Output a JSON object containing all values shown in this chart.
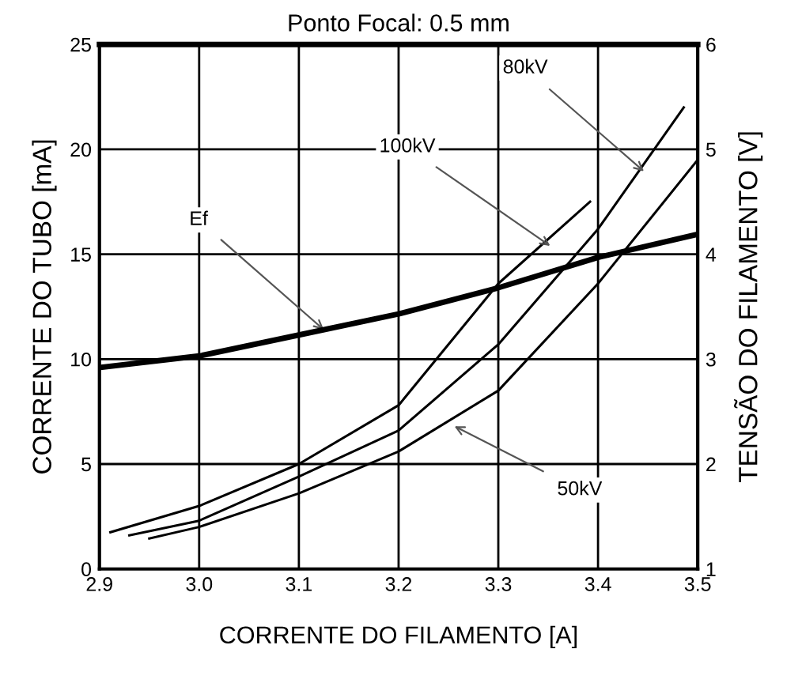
{
  "chart_data": {
    "type": "line",
    "title": "Ponto Focal: 0.5 mm",
    "xlabel": "CORRENTE DO FILAMENTO [A]",
    "ylabel": "CORRENTE DO TUBO [mA]",
    "y2label": "TENSÃO DO FILAMENTO [V]",
    "series": [
      {
        "x": [
          2.911,
          3.0,
          3.1,
          3.2,
          3.3,
          3.392
        ],
        "values": [
          1.75,
          3.0,
          5.0,
          7.8,
          13.6,
          17.5
        ],
        "color": "#000000"
      },
      {
        "x": [
          2.93,
          3.0,
          3.1,
          3.2,
          3.3,
          3.4,
          3.486
        ],
        "values": [
          1.6,
          2.3,
          4.4,
          6.6,
          10.7,
          16.2,
          22.0
        ],
        "color": "#000000"
      },
      {
        "x": [
          2.95,
          3.0,
          3.1,
          3.2,
          3.3,
          3.4,
          3.5
        ],
        "values": [
          1.45,
          2.0,
          3.6,
          5.6,
          8.5,
          13.6,
          19.5
        ],
        "color": "#000000"
      },
      {
        "x": [
          2.9,
          3.0,
          3.1,
          3.2,
          3.3,
          3.4,
          3.5
        ],
        "values": [
          2.92,
          3.03,
          3.23,
          3.43,
          3.68,
          3.97,
          4.19
        ],
        "color": "#000000",
        "axis": "y2"
      }
    ],
    "annotations": [
      {
        "text": "80kV",
        "x": 3.446,
        "y": 18.95
      },
      {
        "text": "100kV",
        "x": 3.352,
        "y": 15.4
      },
      {
        "text": "Ef",
        "x": 3.125,
        "y": 11.4
      },
      {
        "text": "50kV",
        "x": 3.256,
        "y": 6.8
      }
    ],
    "xlim": [
      2.9,
      3.5
    ],
    "xticks": [
      {
        "value": 2.9,
        "label": "2.9"
      },
      {
        "value": 3.0,
        "label": "3.0"
      },
      {
        "value": 3.1,
        "label": "3.1"
      },
      {
        "value": 3.2,
        "label": "3.2"
      },
      {
        "value": 3.3,
        "label": "3.3"
      },
      {
        "value": 3.4,
        "label": "3.4"
      },
      {
        "value": 3.5,
        "label": "3.5"
      }
    ],
    "ylim": [
      0,
      25
    ],
    "yticks": [
      0,
      5,
      10,
      15,
      20,
      25
    ],
    "y2lim": [
      1,
      6
    ],
    "y2ticks": [
      1,
      2,
      3,
      4,
      5,
      6
    ],
    "grid": true,
    "marker": "none",
    "line_style": "solid",
    "legend": false
  }
}
